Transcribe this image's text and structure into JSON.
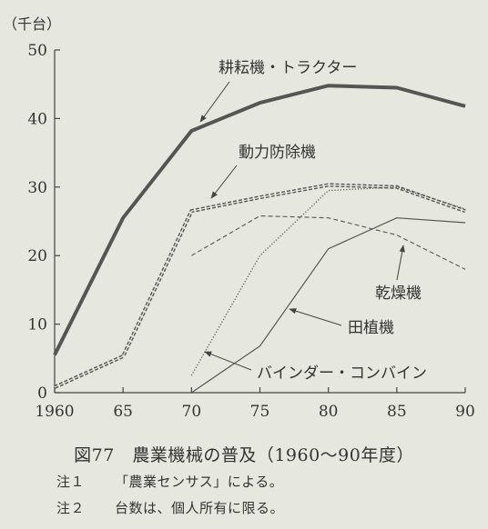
{
  "chart_data": {
    "type": "line",
    "ylabel": "（千台）",
    "ylim": [
      0,
      50
    ],
    "yticks": [
      0,
      10,
      20,
      30,
      40,
      50
    ],
    "xlim": [
      1960,
      1990
    ],
    "xticks": [
      1960,
      1965,
      1970,
      1975,
      1980,
      1985,
      1990
    ],
    "xtick_labels": [
      "1960",
      "65",
      "70",
      "75",
      "80",
      "85",
      "90"
    ],
    "grid": false,
    "series": [
      {
        "name": "耕耘機・トラクター",
        "style": "thick-solid",
        "x": [
          1960,
          1965,
          1970,
          1975,
          1980,
          1985,
          1990
        ],
        "y": [
          5.5,
          25.5,
          38.2,
          42.3,
          44.8,
          44.5,
          41.8
        ]
      },
      {
        "name": "動力防除機",
        "style": "double-dashed",
        "x": [
          1960,
          1965,
          1970,
          1975,
          1980,
          1985,
          1990
        ],
        "y": [
          0.8,
          5.3,
          26.5,
          28.5,
          30.3,
          30.0,
          26.5
        ]
      },
      {
        "name": "乾燥機",
        "style": "dashed",
        "x": [
          1970,
          1975,
          1980,
          1985,
          1990
        ],
        "y": [
          20.0,
          25.8,
          25.5,
          23.0,
          18.0
        ]
      },
      {
        "name": "田植機",
        "style": "solid",
        "x": [
          1970,
          1975,
          1980,
          1985,
          1990
        ],
        "y": [
          0,
          6.8,
          21.0,
          25.5,
          24.8
        ]
      },
      {
        "name": "バインダー・コンバイン",
        "style": "dotted",
        "x": [
          1970,
          1975,
          1980,
          1985,
          1990
        ],
        "y": [
          2.5,
          20.0,
          29.5,
          30.0,
          26.8
        ]
      }
    ]
  },
  "figure": {
    "caption": "図77　農業機械の普及（1960〜90年度）"
  },
  "notes": [
    {
      "num": "注１",
      "text": "「農業センサス」による。"
    },
    {
      "num": "注２",
      "text": "台数は、個人所有に限る。"
    }
  ]
}
